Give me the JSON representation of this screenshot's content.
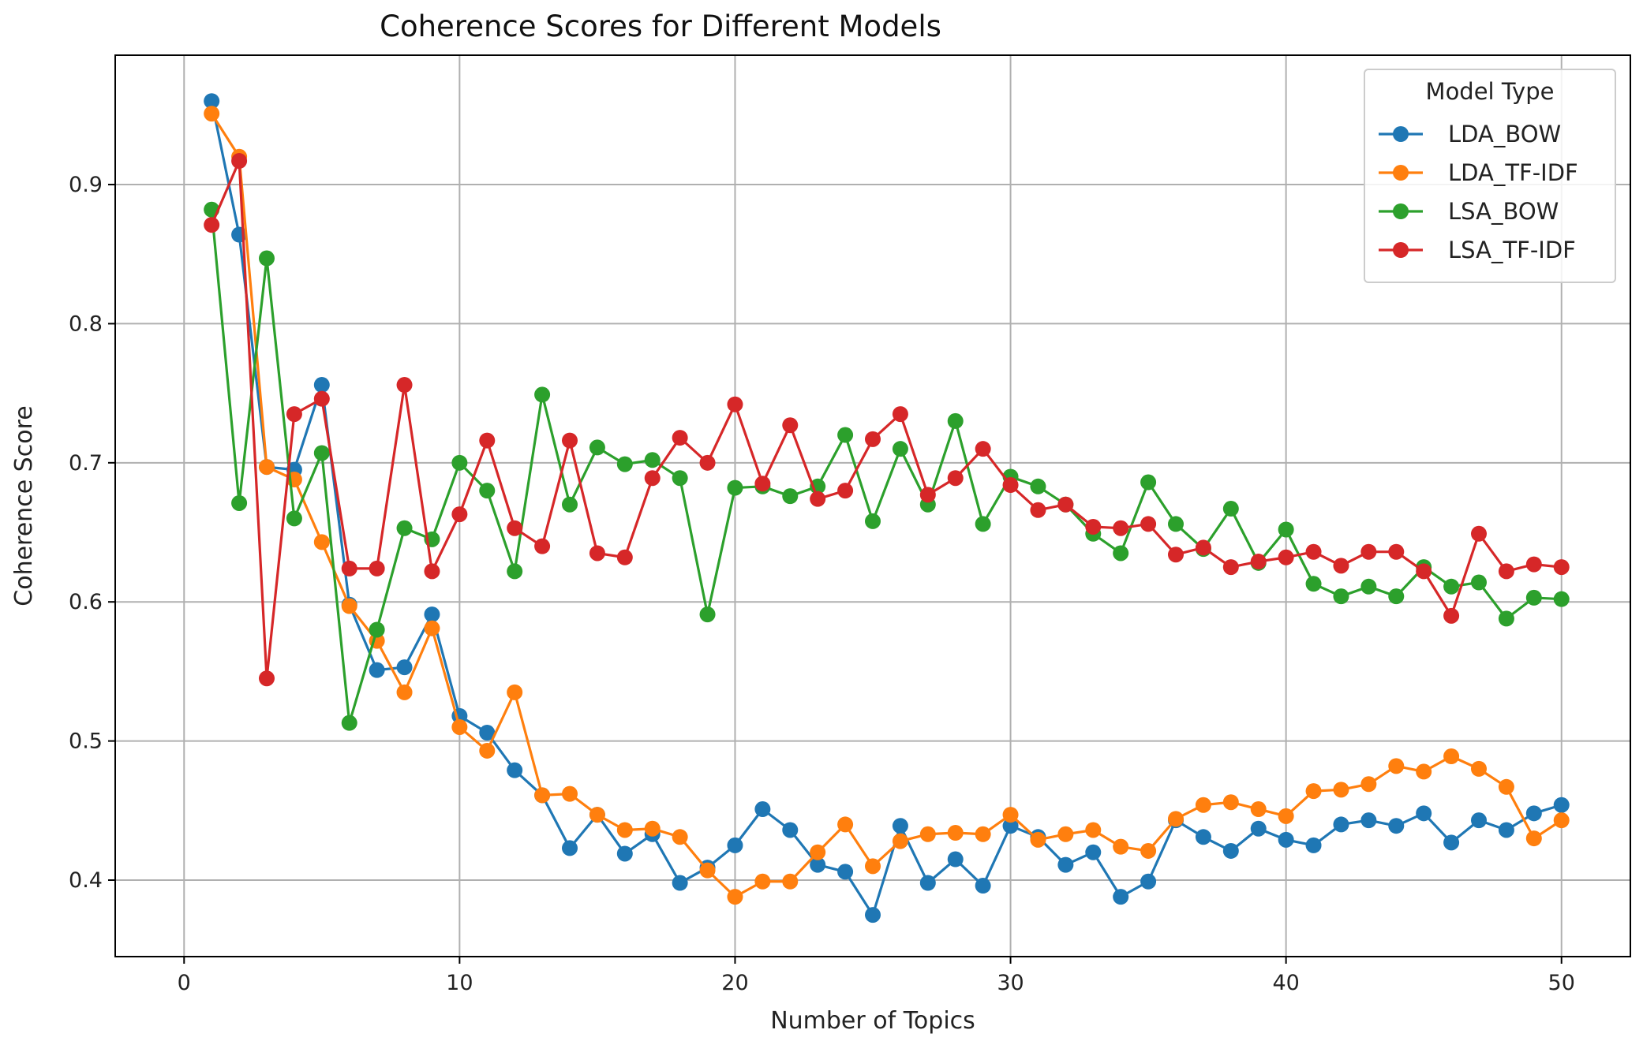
{
  "chart_data": {
    "type": "line",
    "title": "Coherence Scores for Different Models",
    "xlabel": "Number of Topics",
    "ylabel": "Coherence Score",
    "xlim": [
      -2.5,
      52.5
    ],
    "ylim": [
      0.345,
      0.993
    ],
    "xticks": [
      0,
      10,
      20,
      30,
      40,
      50
    ],
    "yticks": [
      0.4,
      0.5,
      0.6,
      0.7,
      0.8,
      0.9
    ],
    "xtick_labels": [
      "0",
      "10",
      "20",
      "30",
      "40",
      "50"
    ],
    "ytick_labels": [
      "0.4",
      "0.5",
      "0.6",
      "0.7",
      "0.8",
      "0.9"
    ],
    "grid": true,
    "legend": {
      "title": "Model Type",
      "placement": "top-right"
    },
    "x": [
      1,
      2,
      3,
      4,
      5,
      6,
      7,
      8,
      9,
      10,
      11,
      12,
      13,
      14,
      15,
      16,
      17,
      18,
      19,
      20,
      21,
      22,
      23,
      24,
      25,
      26,
      27,
      28,
      29,
      30,
      31,
      32,
      33,
      34,
      35,
      36,
      37,
      38,
      39,
      40,
      41,
      42,
      43,
      44,
      45,
      46,
      47,
      48,
      49,
      50
    ],
    "series": [
      {
        "name": "LDA_BOW",
        "color": "#1f77b4",
        "values": [
          0.96,
          0.864,
          0.697,
          0.695,
          0.756,
          0.598,
          0.551,
          0.553,
          0.591,
          0.518,
          0.506,
          0.479,
          0.461,
          0.423,
          0.447,
          0.419,
          0.433,
          0.398,
          0.409,
          0.425,
          0.451,
          0.436,
          0.411,
          0.406,
          0.375,
          0.439,
          0.398,
          0.415,
          0.396,
          0.439,
          0.431,
          0.411,
          0.42,
          0.388,
          0.399,
          0.443,
          0.431,
          0.421,
          0.437,
          0.429,
          0.425,
          0.44,
          0.443,
          0.439,
          0.448,
          0.427,
          0.443,
          0.436,
          0.448,
          0.454
        ]
      },
      {
        "name": "LDA_TF-IDF",
        "color": "#ff7f0e",
        "values": [
          0.951,
          0.92,
          0.697,
          0.688,
          0.643,
          0.597,
          0.572,
          0.535,
          0.581,
          0.51,
          0.493,
          0.535,
          0.461,
          0.462,
          0.447,
          0.436,
          0.437,
          0.431,
          0.407,
          0.388,
          0.399,
          0.399,
          0.42,
          0.44,
          0.41,
          0.428,
          0.433,
          0.434,
          0.433,
          0.447,
          0.429,
          0.433,
          0.436,
          0.424,
          0.421,
          0.444,
          0.454,
          0.456,
          0.451,
          0.446,
          0.464,
          0.465,
          0.469,
          0.482,
          0.478,
          0.489,
          0.48,
          0.467,
          0.43,
          0.443
        ]
      },
      {
        "name": "LSA_BOW",
        "color": "#2ca02c",
        "values": [
          0.882,
          0.671,
          0.847,
          0.66,
          0.707,
          0.513,
          0.58,
          0.653,
          0.645,
          0.7,
          0.68,
          0.622,
          0.749,
          0.67,
          0.711,
          0.699,
          0.702,
          0.689,
          0.591,
          0.682,
          0.683,
          0.676,
          0.683,
          0.72,
          0.658,
          0.71,
          0.67,
          0.73,
          0.656,
          0.69,
          0.683,
          0.67,
          0.649,
          0.635,
          0.686,
          0.656,
          0.638,
          0.667,
          0.628,
          0.652,
          0.613,
          0.604,
          0.611,
          0.604,
          0.625,
          0.611,
          0.614,
          0.588,
          0.603,
          0.602
        ]
      },
      {
        "name": "LSA_TF-IDF",
        "color": "#d62728",
        "values": [
          0.871,
          0.917,
          0.545,
          0.735,
          0.746,
          0.624,
          0.624,
          0.756,
          0.622,
          0.663,
          0.716,
          0.653,
          0.64,
          0.716,
          0.635,
          0.632,
          0.689,
          0.718,
          0.7,
          0.742,
          0.685,
          0.727,
          0.674,
          0.68,
          0.717,
          0.735,
          0.677,
          0.689,
          0.71,
          0.684,
          0.666,
          0.67,
          0.654,
          0.653,
          0.656,
          0.634,
          0.639,
          0.625,
          0.629,
          0.632,
          0.636,
          0.626,
          0.636,
          0.636,
          0.622,
          0.59,
          0.649,
          0.622,
          0.627,
          0.625
        ]
      }
    ]
  }
}
